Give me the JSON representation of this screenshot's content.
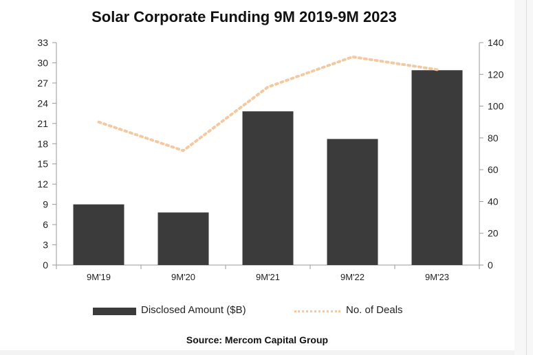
{
  "chart_data": {
    "type": "bar",
    "title": "Solar Corporate Funding 9M 2019-9M 2023",
    "source": "Source: Mercom Capital Group",
    "categories": [
      "9M'19",
      "9M'20",
      "9M'21",
      "9M'22",
      "9M'23"
    ],
    "series": [
      {
        "name": "Disclosed Amount ($B)",
        "type": "bar",
        "axis": "left",
        "values": [
          9.0,
          7.8,
          22.8,
          18.7,
          28.9
        ],
        "color": "#3b3b3b"
      },
      {
        "name": "No. of Deals",
        "type": "line",
        "axis": "right",
        "style": "dotted",
        "values": [
          90,
          72,
          112,
          131,
          123
        ],
        "color": "#f3c9a2"
      }
    ],
    "y_left": {
      "min": 0,
      "max": 33,
      "ticks": [
        "0",
        "3",
        "6",
        "9",
        "12",
        "15",
        "18",
        "21",
        "24",
        "27",
        "30",
        "33"
      ]
    },
    "y_right": {
      "min": 0,
      "max": 140,
      "ticks": [
        "0",
        "20",
        "40",
        "60",
        "80",
        "100",
        "120",
        "140"
      ]
    },
    "legend_position": "bottom",
    "grid": false
  }
}
